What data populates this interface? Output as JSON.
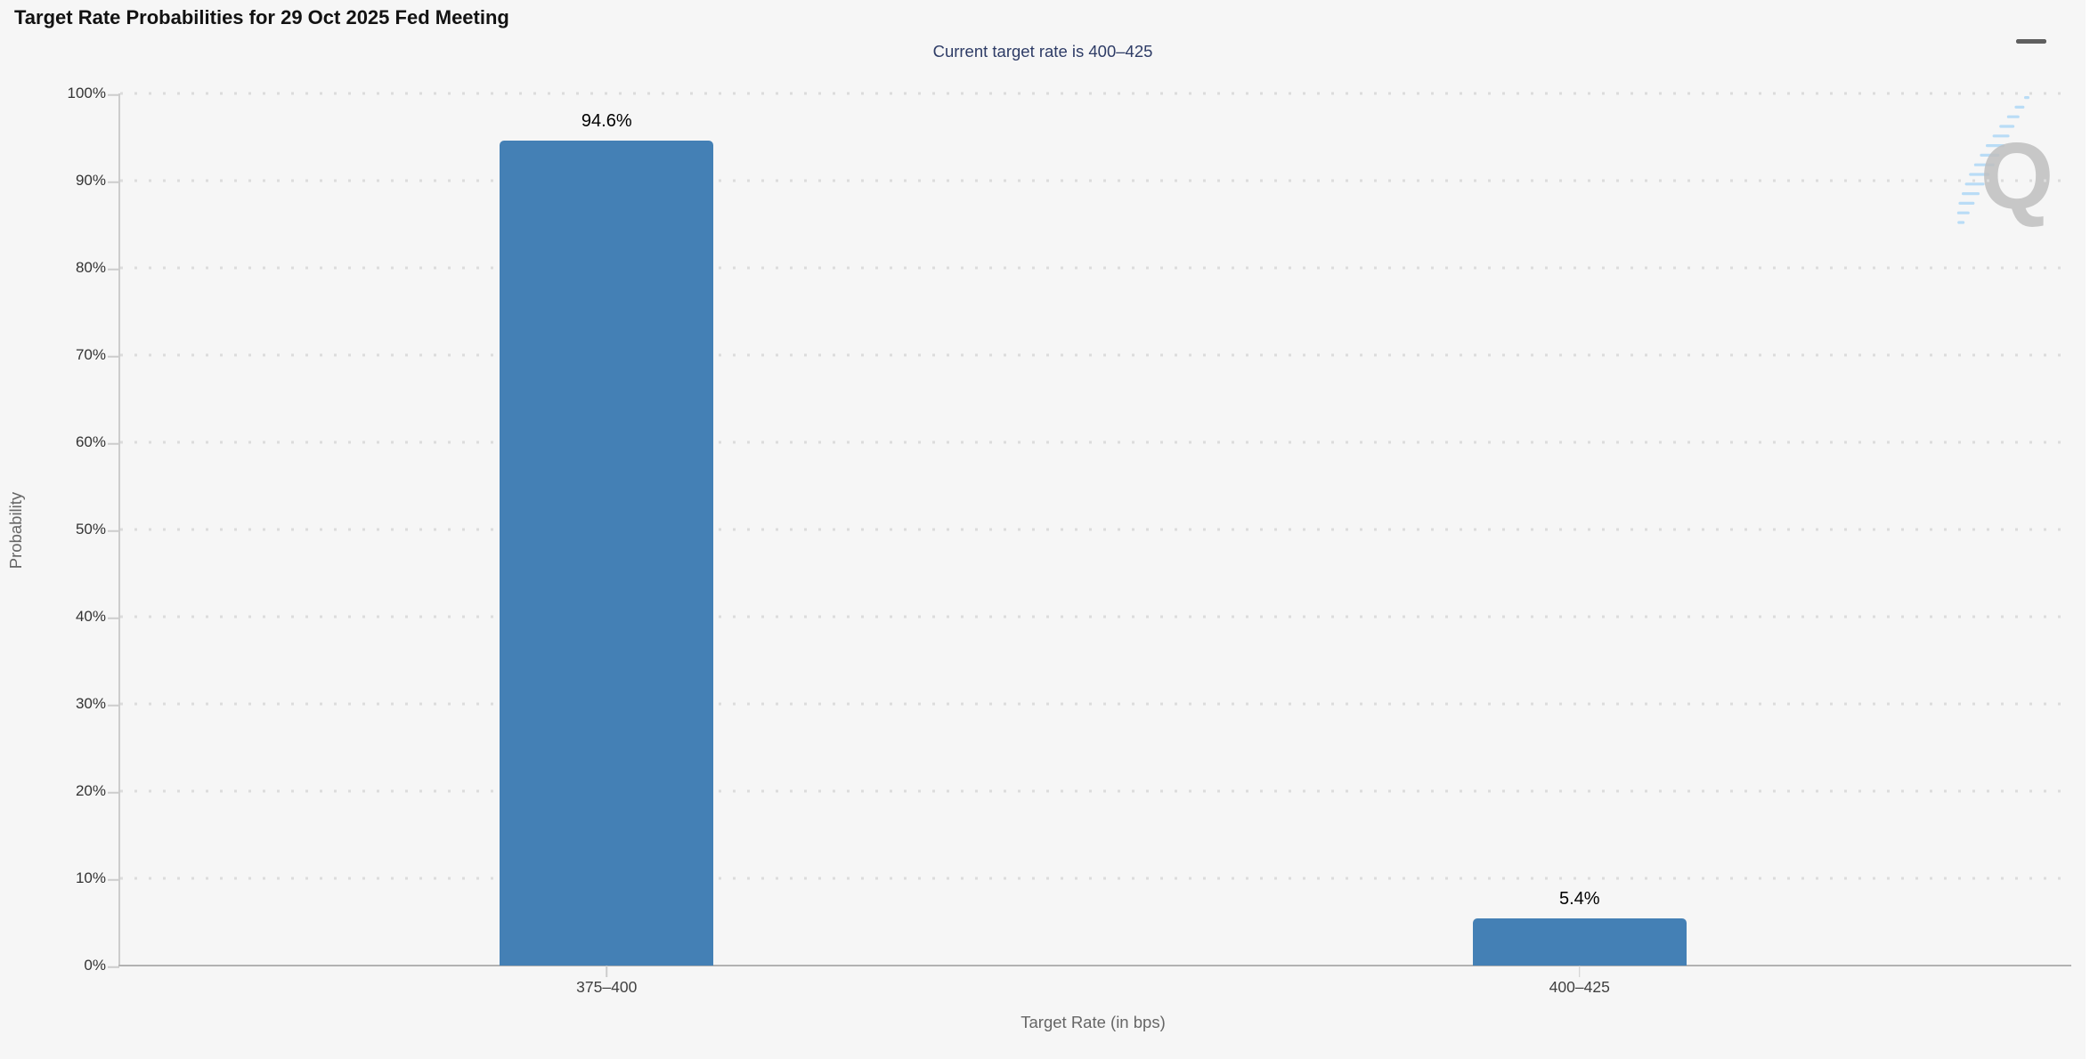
{
  "chart_data": {
    "type": "bar",
    "title": "Target Rate Probabilities for 29 Oct 2025 Fed Meeting",
    "subtitle": "Current target rate is 400–425",
    "categories": [
      "375–400",
      "400–425"
    ],
    "values": [
      94.6,
      5.4
    ],
    "data_labels": [
      "94.6%",
      "5.4%"
    ],
    "xlabel": "Target Rate (in bps)",
    "ylabel": "Probability",
    "ylim": [
      0,
      100
    ],
    "ytick_step": 10,
    "ytick_suffix": "%",
    "ytick_labels": [
      "0%",
      "10%",
      "20%",
      "30%",
      "40%",
      "50%",
      "60%",
      "70%",
      "80%",
      "90%",
      "100%"
    ],
    "grid": "horizontal-dotted",
    "legend": "none",
    "bar_color": "#4480B5",
    "background_color": "#F6F6F6",
    "subtitle_color": "#2E3C66"
  },
  "menu": {
    "icon": "hamburger-menu-icon"
  },
  "watermark": {
    "letter": "Q"
  }
}
